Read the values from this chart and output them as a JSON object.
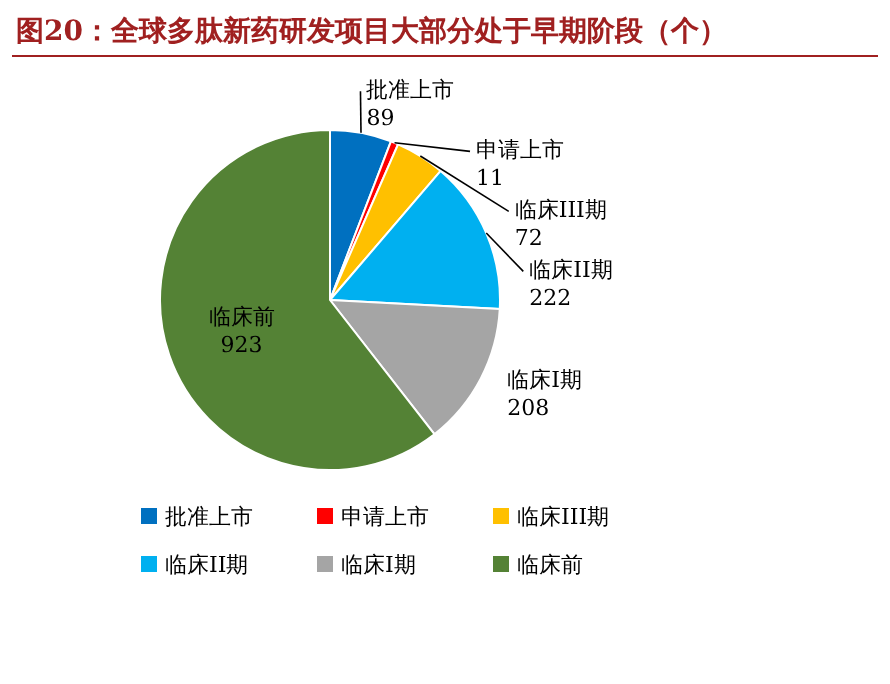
{
  "chart_data": {
    "type": "pie",
    "title": "图20：全球多肽新药研发项目大部分处于早期阶段（个）",
    "categories": [
      "批准上市",
      "申请上市",
      "临床III期",
      "临床II期",
      "临床I期",
      "临床前"
    ],
    "values": [
      89,
      11,
      72,
      222,
      208,
      923
    ],
    "colors": [
      "#0070c0",
      "#ff0000",
      "#ffc000",
      "#00b0f0",
      "#a5a5a5",
      "#548235"
    ],
    "data_labels": true,
    "legend": "bottom"
  }
}
